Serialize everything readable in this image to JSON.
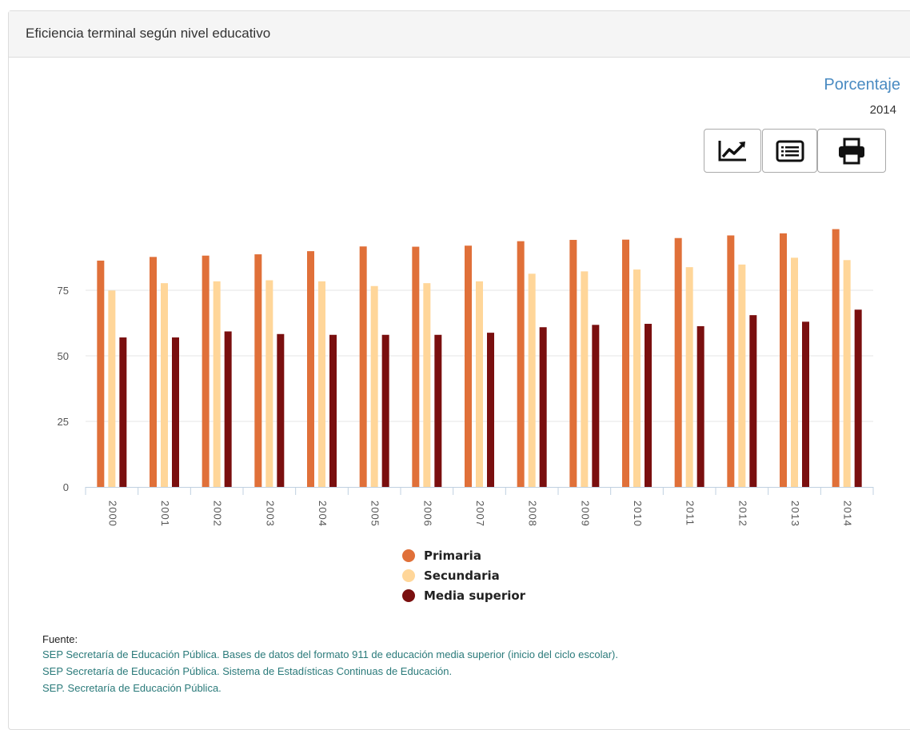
{
  "panel": {
    "title": "Eficiencia terminal según nivel educativo"
  },
  "header": {
    "unit": "Porcentaje",
    "year": "2014"
  },
  "toolbar": {
    "chart_icon": "line-chart-icon",
    "table_icon": "table-list-icon",
    "print_icon": "printer-icon"
  },
  "chart_data": {
    "type": "bar",
    "categories": [
      "2000",
      "2001",
      "2002",
      "2003",
      "2004",
      "2005",
      "2006",
      "2007",
      "2008",
      "2009",
      "2010",
      "2011",
      "2012",
      "2013",
      "2014"
    ],
    "series": [
      {
        "name": "Primaria",
        "color": "#e07039",
        "values": [
          86.3,
          87.7,
          88.2,
          88.7,
          89.9,
          91.7,
          91.6,
          92.0,
          93.7,
          94.2,
          94.3,
          94.9,
          95.9,
          96.7,
          98.3
        ]
      },
      {
        "name": "Secundaria",
        "color": "#ffd699",
        "values": [
          74.9,
          77.7,
          78.4,
          78.8,
          78.4,
          76.6,
          77.7,
          78.4,
          81.3,
          82.2,
          82.9,
          83.8,
          84.8,
          87.4,
          86.5
        ]
      },
      {
        "name": "Media superior",
        "color": "#7a0f0f",
        "values": [
          57.0,
          57.0,
          59.3,
          58.3,
          58.0,
          58.0,
          58.0,
          58.8,
          60.9,
          61.8,
          62.2,
          61.3,
          65.5,
          63.0,
          67.6
        ]
      }
    ],
    "y_ticks": [
      0,
      25,
      50,
      75
    ],
    "ylim": [
      0,
      100
    ],
    "grid": true,
    "legend_position": "bottom"
  },
  "legend": [
    {
      "label": "Primaria",
      "color": "#e07039"
    },
    {
      "label": "Secundaria",
      "color": "#ffd699"
    },
    {
      "label": "Media superior",
      "color": "#7a0f0f"
    }
  ],
  "source": {
    "title": "Fuente:",
    "lines": [
      "SEP Secretaría de Educación Pública. Bases de datos del formato 911 de educación media superior (inicio del ciclo escolar).",
      "SEP Secretaría de Educación Pública. Sistema de Estadísticas Continuas de Educación.",
      "SEP. Secretaría de Educación Pública."
    ]
  }
}
